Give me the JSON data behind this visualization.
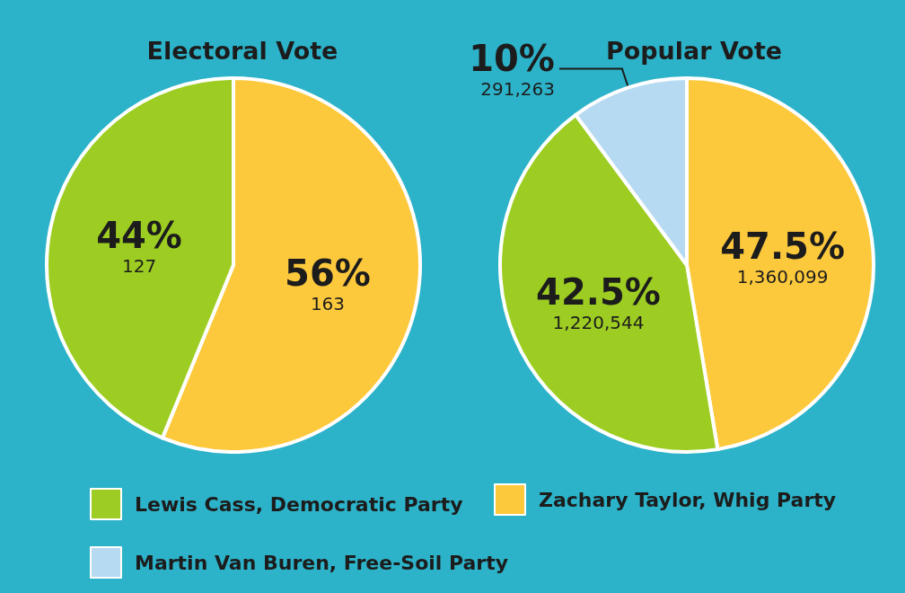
{
  "chart_data": {
    "type": "pie",
    "categories": [
      "Zachary Taylor, Whig Party",
      "Lewis Cass, Democratic Party",
      "Martin Van Buren, Free-Soil Party"
    ],
    "colors": [
      "#fdc93c",
      "#9dcd22",
      "#b7daf3"
    ],
    "legend": "bottom",
    "series": [
      {
        "name": "Electoral Vote",
        "values": [
          163,
          127,
          null
        ],
        "value_labels": [
          "56%\n163",
          "44%\n127",
          null
        ]
      },
      {
        "name": "Popular Vote",
        "values": [
          1360099,
          1220544,
          291263
        ],
        "value_labels": [
          "47.5%\n1,360,099",
          "42.5%\n1,220,544",
          "10%\n291,263"
        ]
      }
    ]
  }
}
